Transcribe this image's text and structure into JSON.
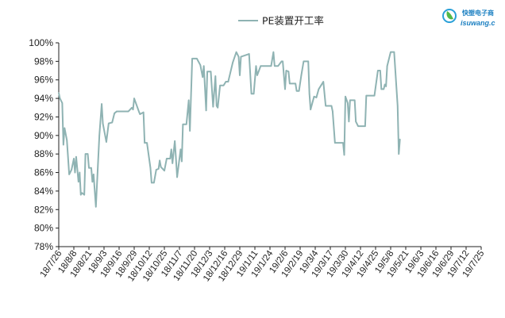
{
  "logo": {
    "name_cn": "快塑电子商",
    "name_en": "isuwang.c",
    "icon": "leaf-drop-logo-icon",
    "color": "#1a7fc1"
  },
  "chart_data": {
    "type": "line",
    "title": "",
    "xlabel": "",
    "ylabel": "",
    "ylim": [
      78,
      100
    ],
    "y_ticks": [
      "78%",
      "80%",
      "82%",
      "84%",
      "86%",
      "88%",
      "90%",
      "92%",
      "94%",
      "96%",
      "98%",
      "100%"
    ],
    "y_tick_values": [
      78,
      80,
      82,
      84,
      86,
      88,
      90,
      92,
      94,
      96,
      98,
      100
    ],
    "x_tick_labels": [
      "18/7/26",
      "18/8/8",
      "18/8/21",
      "18/9/3",
      "18/9/16",
      "18/9/29",
      "18/10/12",
      "18/10/25",
      "18/11/7",
      "18/11/20",
      "18/12/3",
      "18/12/16",
      "18/12/29",
      "19/1/11",
      "19/1/24",
      "19/2/6",
      "19/2/19",
      "19/3/4",
      "19/3/17",
      "19/3/30",
      "19/4/12",
      "19/4/25",
      "19/5/8",
      "19/5/21",
      "19/6/3",
      "19/6/16",
      "19/6/29",
      "19/7/12",
      "19/7/25"
    ],
    "x_range": [
      "2018-07-26",
      "2019-07-25"
    ],
    "grid": false,
    "legend_position": "top-center",
    "series": [
      {
        "name": "PE装置开工率",
        "color": "#8fb3b3",
        "points": [
          [
            "2018-07-26",
            94.6
          ],
          [
            "2018-07-27",
            94.0
          ],
          [
            "2018-07-29",
            93.5
          ],
          [
            "2018-07-30",
            89.0
          ],
          [
            "2018-07-31",
            90.8
          ],
          [
            "2018-08-02",
            89.5
          ],
          [
            "2018-08-04",
            85.8
          ],
          [
            "2018-08-06",
            86.3
          ],
          [
            "2018-08-08",
            87.5
          ],
          [
            "2018-08-09",
            86.0
          ],
          [
            "2018-08-10",
            87.7
          ],
          [
            "2018-08-12",
            85.0
          ],
          [
            "2018-08-13",
            86.0
          ],
          [
            "2018-08-14",
            83.6
          ],
          [
            "2018-08-15",
            83.8
          ],
          [
            "2018-08-17",
            83.6
          ],
          [
            "2018-08-18",
            88.0
          ],
          [
            "2018-08-20",
            88.0
          ],
          [
            "2018-08-21",
            86.5
          ],
          [
            "2018-08-23",
            86.5
          ],
          [
            "2018-08-24",
            85.0
          ],
          [
            "2018-08-25",
            85.8
          ],
          [
            "2018-08-27",
            82.3
          ],
          [
            "2018-08-30",
            90.0
          ],
          [
            "2018-09-01",
            93.4
          ],
          [
            "2018-09-02",
            91.3
          ],
          [
            "2018-09-05",
            89.3
          ],
          [
            "2018-09-07",
            91.3
          ],
          [
            "2018-09-10",
            91.4
          ],
          [
            "2018-09-12",
            92.4
          ],
          [
            "2018-09-14",
            92.6
          ],
          [
            "2018-09-24",
            92.6
          ],
          [
            "2018-09-27",
            93.0
          ],
          [
            "2018-09-28",
            92.8
          ],
          [
            "2018-09-29",
            94.0
          ],
          [
            "2018-10-03",
            92.6
          ],
          [
            "2018-10-04",
            92.3
          ],
          [
            "2018-10-07",
            92.5
          ],
          [
            "2018-10-08",
            89.2
          ],
          [
            "2018-10-10",
            89.2
          ],
          [
            "2018-10-13",
            86.5
          ],
          [
            "2018-10-14",
            84.9
          ],
          [
            "2018-10-16",
            84.9
          ],
          [
            "2018-10-18",
            86.3
          ],
          [
            "2018-10-20",
            86.4
          ],
          [
            "2018-10-21",
            87.3
          ],
          [
            "2018-10-22",
            86.6
          ],
          [
            "2018-10-25",
            86.2
          ],
          [
            "2018-10-27",
            87.5
          ],
          [
            "2018-10-30",
            87.5
          ],
          [
            "2018-10-31",
            88.5
          ],
          [
            "2018-11-01",
            87.0
          ],
          [
            "2018-11-03",
            89.4
          ],
          [
            "2018-11-04",
            87.5
          ],
          [
            "2018-11-05",
            85.5
          ],
          [
            "2018-11-08",
            88.5
          ],
          [
            "2018-11-09",
            87.2
          ],
          [
            "2018-11-10",
            91.2
          ],
          [
            "2018-11-13",
            91.2
          ],
          [
            "2018-11-15",
            93.8
          ],
          [
            "2018-11-16",
            90.5
          ],
          [
            "2018-11-18",
            98.3
          ],
          [
            "2018-11-22",
            98.3
          ],
          [
            "2018-11-25",
            97.6
          ],
          [
            "2018-11-27",
            96.3
          ],
          [
            "2018-11-28",
            97.5
          ],
          [
            "2018-11-30",
            92.7
          ],
          [
            "2018-12-01",
            96.9
          ],
          [
            "2018-12-04",
            96.9
          ],
          [
            "2018-12-06",
            93.1
          ],
          [
            "2018-12-08",
            96.4
          ],
          [
            "2018-12-09",
            93.2
          ],
          [
            "2018-12-10",
            93.0
          ],
          [
            "2018-12-12",
            95.4
          ],
          [
            "2018-12-15",
            95.4
          ],
          [
            "2018-12-17",
            95.8
          ],
          [
            "2018-12-19",
            95.8
          ],
          [
            "2018-12-23",
            97.9
          ],
          [
            "2018-12-26",
            99.0
          ],
          [
            "2018-12-28",
            98.5
          ],
          [
            "2018-12-29",
            96.5
          ],
          [
            "2018-12-30",
            98.5
          ],
          [
            "2019-01-06",
            98.8
          ],
          [
            "2019-01-08",
            94.5
          ],
          [
            "2019-01-10",
            94.5
          ],
          [
            "2019-01-12",
            97.5
          ],
          [
            "2019-01-13",
            96.5
          ],
          [
            "2019-01-16",
            97.5
          ],
          [
            "2019-01-25",
            97.5
          ],
          [
            "2019-01-27",
            99.0
          ],
          [
            "2019-01-28",
            97.5
          ],
          [
            "2019-01-31",
            97.5
          ],
          [
            "2019-02-03",
            98.0
          ],
          [
            "2019-02-04",
            98.0
          ],
          [
            "2019-02-06",
            95.0
          ],
          [
            "2019-02-07",
            97.0
          ],
          [
            "2019-02-09",
            96.9
          ],
          [
            "2019-02-10",
            95.6
          ],
          [
            "2019-02-15",
            95.6
          ],
          [
            "2019-02-16",
            94.8
          ],
          [
            "2019-02-18",
            94.8
          ],
          [
            "2019-02-20",
            96.5
          ],
          [
            "2019-02-22",
            98.0
          ],
          [
            "2019-02-26",
            98.0
          ],
          [
            "2019-02-27",
            94.5
          ],
          [
            "2019-02-28",
            92.8
          ],
          [
            "2019-03-03",
            94.2
          ],
          [
            "2019-03-05",
            94.1
          ],
          [
            "2019-03-07",
            95.0
          ],
          [
            "2019-03-11",
            95.8
          ],
          [
            "2019-03-13",
            93.2
          ],
          [
            "2019-03-18",
            93.2
          ],
          [
            "2019-03-19",
            92.6
          ],
          [
            "2019-03-21",
            89.2
          ],
          [
            "2019-03-28",
            89.2
          ],
          [
            "2019-03-29",
            87.9
          ],
          [
            "2019-03-30",
            94.2
          ],
          [
            "2019-04-01",
            93.5
          ],
          [
            "2019-04-02",
            91.5
          ],
          [
            "2019-04-03",
            93.8
          ],
          [
            "2019-04-07",
            93.8
          ],
          [
            "2019-04-08",
            91.5
          ],
          [
            "2019-04-10",
            91.0
          ],
          [
            "2019-04-16",
            91.0
          ],
          [
            "2019-04-17",
            94.3
          ],
          [
            "2019-04-24",
            94.3
          ],
          [
            "2019-04-27",
            97.0
          ],
          [
            "2019-04-29",
            97.0
          ],
          [
            "2019-04-30",
            95.0
          ],
          [
            "2019-05-02",
            95.0
          ],
          [
            "2019-05-03",
            95.5
          ],
          [
            "2019-05-04",
            95.3
          ],
          [
            "2019-05-05",
            97.5
          ],
          [
            "2019-05-08",
            99.0
          ],
          [
            "2019-05-11",
            99.0
          ],
          [
            "2019-05-14",
            93.2
          ],
          [
            "2019-05-15",
            88.0
          ],
          [
            "2019-05-16",
            89.6
          ]
        ]
      }
    ]
  }
}
